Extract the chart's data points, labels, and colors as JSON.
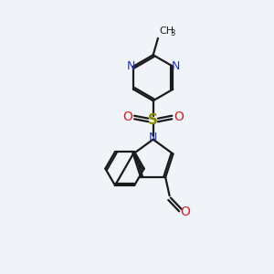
{
  "bg_color": "#f0f4f8",
  "bond_color": "#1a1a1a",
  "nitrogen_color": "#2233bb",
  "oxygen_color": "#cc2222",
  "sulfur_color": "#888800",
  "line_width": 1.6,
  "fig_size": [
    3.0,
    3.0
  ],
  "dpi": 100,
  "xlim": [
    0,
    10
  ],
  "ylim": [
    0,
    10
  ]
}
